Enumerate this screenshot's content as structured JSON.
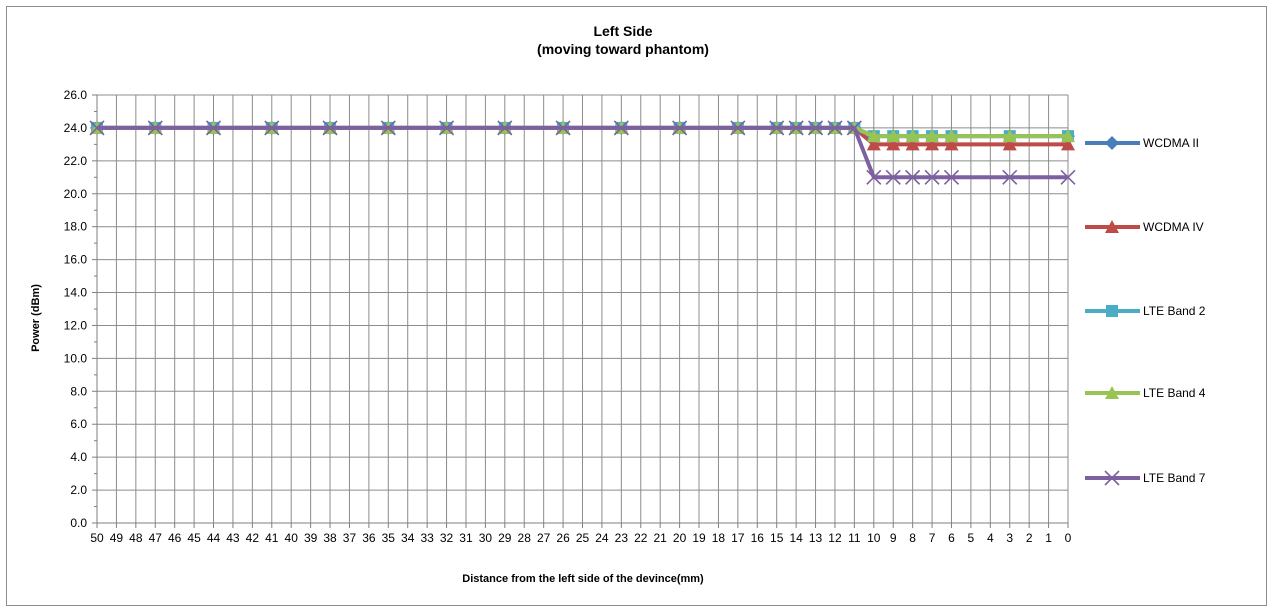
{
  "chart_data": {
    "type": "line",
    "title": "Left Side",
    "subtitle": "(moving toward phantom)",
    "xlabel": "Distance from the left side of the devince(mm)",
    "ylabel": "Power (dBm)",
    "ylim": [
      0,
      26
    ],
    "ytick_step": 2,
    "x_categories": [
      50,
      49,
      48,
      47,
      46,
      45,
      44,
      43,
      42,
      41,
      40,
      39,
      38,
      37,
      36,
      35,
      34,
      33,
      32,
      31,
      30,
      29,
      28,
      27,
      26,
      25,
      24,
      23,
      22,
      21,
      20,
      19,
      18,
      17,
      16,
      15,
      14,
      13,
      12,
      11,
      10,
      9,
      8,
      7,
      6,
      5,
      4,
      3,
      2,
      1,
      0
    ],
    "grid": true,
    "legend_position": "right",
    "series": [
      {
        "name": "WCDMA  II",
        "color": "#4a7ebb",
        "marker": "diamond",
        "x": [
          50,
          47,
          44,
          41,
          38,
          35,
          32,
          29,
          26,
          23,
          20,
          17,
          15,
          14,
          13,
          12,
          11,
          10,
          9,
          8,
          7,
          6,
          3,
          0
        ],
        "y": [
          24,
          24,
          24,
          24,
          24,
          24,
          24,
          24,
          24,
          24,
          24,
          24,
          24,
          24,
          24,
          24,
          24,
          23.5,
          23.5,
          23.5,
          23.5,
          23.5,
          23.5,
          23.5
        ]
      },
      {
        "name": "WCDMA  IV",
        "color": "#be4b48",
        "marker": "triangle",
        "x": [
          50,
          47,
          44,
          41,
          38,
          35,
          32,
          29,
          26,
          23,
          20,
          17,
          15,
          14,
          13,
          12,
          11,
          10,
          9,
          8,
          7,
          6,
          3,
          0
        ],
        "y": [
          24,
          24,
          24,
          24,
          24,
          24,
          24,
          24,
          24,
          24,
          24,
          24,
          24,
          24,
          24,
          24,
          24,
          23,
          23,
          23,
          23,
          23,
          23,
          23
        ]
      },
      {
        "name": "LTE Band 2",
        "color": "#4bacc6",
        "marker": "square",
        "x": [
          50,
          47,
          44,
          41,
          38,
          35,
          32,
          29,
          26,
          23,
          20,
          17,
          15,
          14,
          13,
          12,
          11,
          10,
          9,
          8,
          7,
          6,
          3,
          0
        ],
        "y": [
          24,
          24,
          24,
          24,
          24,
          24,
          24,
          24,
          24,
          24,
          24,
          24,
          24,
          24,
          24,
          24,
          24,
          23.5,
          23.5,
          23.5,
          23.5,
          23.5,
          23.5,
          23.5
        ]
      },
      {
        "name": "LTE Band 4",
        "color": "#98c454",
        "marker": "triangle",
        "x": [
          50,
          47,
          44,
          41,
          38,
          35,
          32,
          29,
          26,
          23,
          20,
          17,
          15,
          14,
          13,
          12,
          11,
          10,
          9,
          8,
          7,
          6,
          3,
          0
        ],
        "y": [
          24,
          24,
          24,
          24,
          24,
          24,
          24,
          24,
          24,
          24,
          24,
          24,
          24,
          24,
          24,
          24,
          24,
          23.5,
          23.5,
          23.5,
          23.5,
          23.5,
          23.5,
          23.5
        ]
      },
      {
        "name": "LTE Band 7",
        "color": "#7d60a0",
        "marker": "x",
        "x": [
          50,
          47,
          44,
          41,
          38,
          35,
          32,
          29,
          26,
          23,
          20,
          17,
          15,
          14,
          13,
          12,
          11,
          10,
          9,
          8,
          7,
          6,
          3,
          0
        ],
        "y": [
          24,
          24,
          24,
          24,
          24,
          24,
          24,
          24,
          24,
          24,
          24,
          24,
          24,
          24,
          24,
          24,
          24,
          21,
          21,
          21,
          21,
          21,
          21,
          21
        ]
      }
    ]
  }
}
